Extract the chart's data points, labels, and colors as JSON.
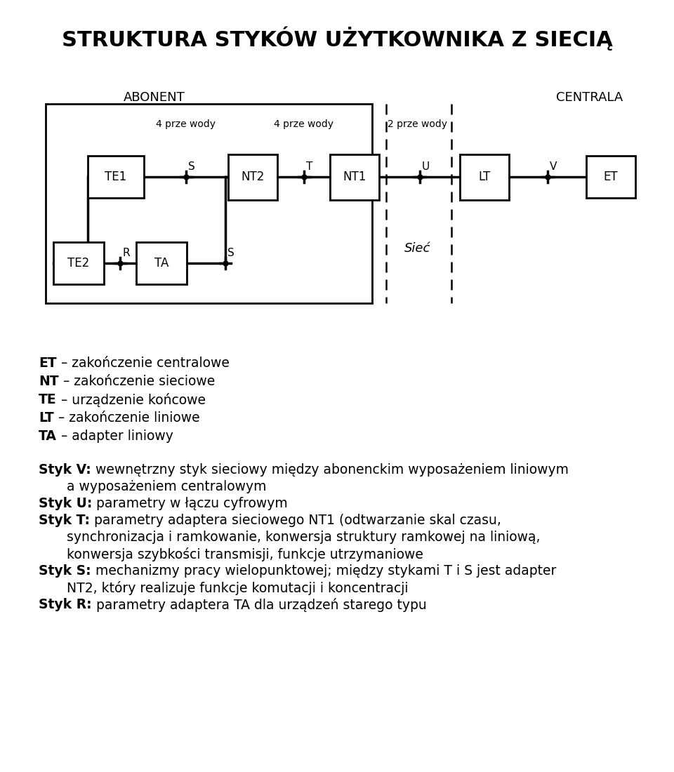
{
  "title": "STRUKTURA STYKÓW UŻYTKOWNIKA Z SIECIĄ",
  "bg_color": "#ffffff",
  "legend_lines": [
    {
      "bold": "ET",
      "rest": " – zakończenie centralowe"
    },
    {
      "bold": "NT",
      "rest": " – zakończenie sieciowe"
    },
    {
      "bold": "TE",
      "rest": " – urządzenie końcowe"
    },
    {
      "bold": "LT",
      "rest": " – zakończenie liniowe"
    },
    {
      "bold": "TA",
      "rest": " – adapter liniowy"
    }
  ],
  "styk_lines": [
    {
      "bold": "Styk V:",
      "rest_lines": [
        " wewnętrzny styk sieciowy między abonenckim wyposażeniem liniowym",
        "a wyposażeniem centralowym"
      ]
    },
    {
      "bold": "Styk U:",
      "rest_lines": [
        " parametry w łączu cyfrowym"
      ]
    },
    {
      "bold": "Styk T:",
      "rest_lines": [
        " parametry adaptera sieciowego NT1 (odtwarzanie skal czasu,",
        "synchronizacja i ramkowanie, konwersja struktury ramkowej na liniową,",
        "konwersja szybkości transmisji, funkcje utrzymaniowe"
      ]
    },
    {
      "bold": "Styk S:",
      "rest_lines": [
        " mechanizmy pracy wielopunktowej; między stykami T i S jest adapter",
        "NT2, który realizuje funkcje komutacji i koncentracji"
      ]
    },
    {
      "bold": "Styk R:",
      "rest_lines": [
        " parametry adaptera TA dla urządzeń starego typu"
      ]
    }
  ],
  "abonent_label": "ABONENT",
  "centrala_label": "CENTRALA",
  "siec_label": "Sieć",
  "wire_label_1": "4 prze wody",
  "wire_label_2": "4 prze wody",
  "wire_label_3": "2 prze wody"
}
